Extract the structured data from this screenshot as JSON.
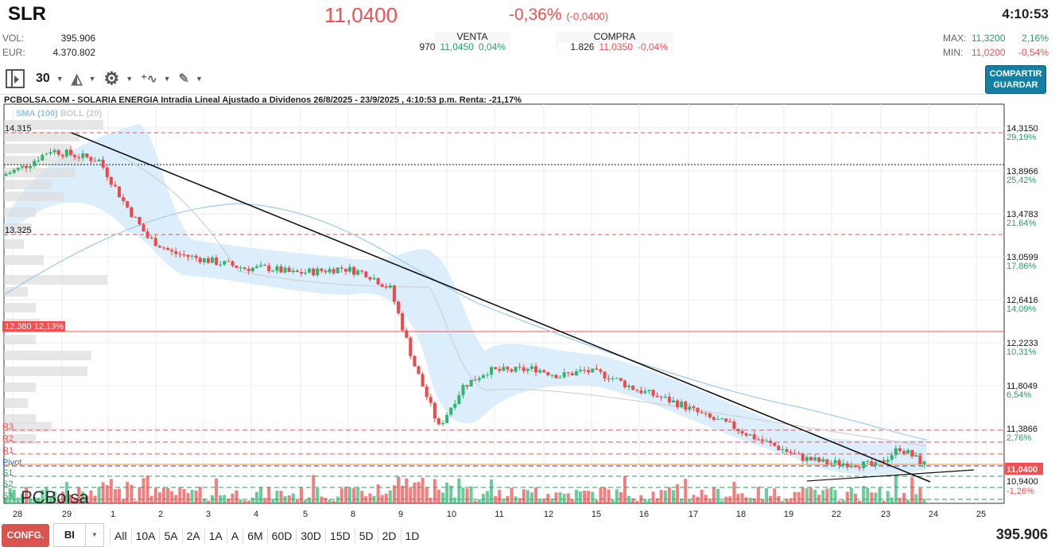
{
  "header": {
    "ticker": "SLR",
    "price": "11,0400",
    "change_pct": "-0,36%",
    "change_abs": "(-0,0400)",
    "time": "4:10:53",
    "vol_label": "VOL:",
    "vol": "395.906",
    "eur_label": "EUR:",
    "eur": "4.370.802",
    "venta": {
      "label": "VENTA",
      "qty": "970",
      "price": "11,0450",
      "pct": "0,04%"
    },
    "compra": {
      "label": "COMPRA",
      "qty": "1.826",
      "price": "11,0350",
      "pct": "-0,04%"
    },
    "max_label": "MAX:",
    "max": "11,3200",
    "max_pct": "2,16%",
    "min_label": "MIN:",
    "min": "11,0200",
    "min_pct": "-0,54%"
  },
  "toolbar": {
    "period": "30",
    "share_line1": "COMPARTIR",
    "share_line2": "GUARDAR",
    "icons": [
      "panel-toggle-icon",
      "area-chart-icon",
      "gear-icon",
      "indicators-icon",
      "pencil-draw-icon"
    ]
  },
  "chart": {
    "title": "PCBOLSA.COM - SOLARIA ENERGIA Intradia Lineal Ajustado a Dividenos 26/8/2025 - 23/9/2025 , 4:10:53 p.m. Renta: -21,17%",
    "legend_sma": "SMA (100)",
    "legend_boll": "BOLL (20)",
    "watermark": "PCBolsa",
    "max_level_label": "14,315",
    "min_level_label": "13,325",
    "level_label": "12,380",
    "level_pct": "12,13%",
    "current_price_label": "11,0400",
    "hidden_axis_label": "10,9400",
    "hidden_axis_pct": "-1,26%",
    "pivots": [
      "R3",
      "R2",
      "R1",
      "Pivot",
      "S1",
      "S2",
      "S3"
    ],
    "colors": {
      "up": "#2fb56f",
      "down": "#f04848",
      "sma": "#9ccbee",
      "band": "#d6ebfa",
      "accent": "#137fa3"
    }
  },
  "chart_data": {
    "type": "candlestick",
    "y_ticks": [
      {
        "price": "14,3150",
        "pct": "29,19%"
      },
      {
        "price": "13,8966",
        "pct": "25,42%"
      },
      {
        "price": "13,4783",
        "pct": "21,64%"
      },
      {
        "price": "13,0599",
        "pct": "17,86%"
      },
      {
        "price": "12,6416",
        "pct": "14,09%"
      },
      {
        "price": "12,2233",
        "pct": "10,31%"
      },
      {
        "price": "11,8049",
        "pct": "6,54%"
      },
      {
        "price": "11,3866",
        "pct": "2,76%"
      }
    ],
    "x_ticks": [
      "28",
      "29",
      "1",
      "2",
      "3",
      "4",
      "5",
      "8",
      "9",
      "10",
      "11",
      "12",
      "15",
      "16",
      "17",
      "18",
      "19",
      "22",
      "23",
      "24",
      "25"
    ],
    "ylim": [
      10.85,
      14.55
    ],
    "closes": [
      13.85,
      13.95,
      14.1,
      14.05,
      14.0,
      13.6,
      13.25,
      13.1,
      13.05,
      13.0,
      12.95,
      12.95,
      12.9,
      12.92,
      12.95,
      12.9,
      12.75,
      12.0,
      11.4,
      11.8,
      11.95,
      11.95,
      11.97,
      11.9,
      11.95,
      11.9,
      11.78,
      11.7,
      11.62,
      11.5,
      11.42,
      11.3,
      11.2,
      11.1,
      11.05,
      11.05,
      11.02,
      11.2,
      11.04
    ]
  },
  "bottom": {
    "config": "CONFG.",
    "bi": "BI",
    "ranges": [
      "All",
      "10A",
      "5A",
      "2A",
      "1A",
      "A",
      "6M",
      "60D",
      "30D",
      "15D",
      "5D",
      "2D",
      "1D"
    ],
    "volume": "395.906"
  }
}
